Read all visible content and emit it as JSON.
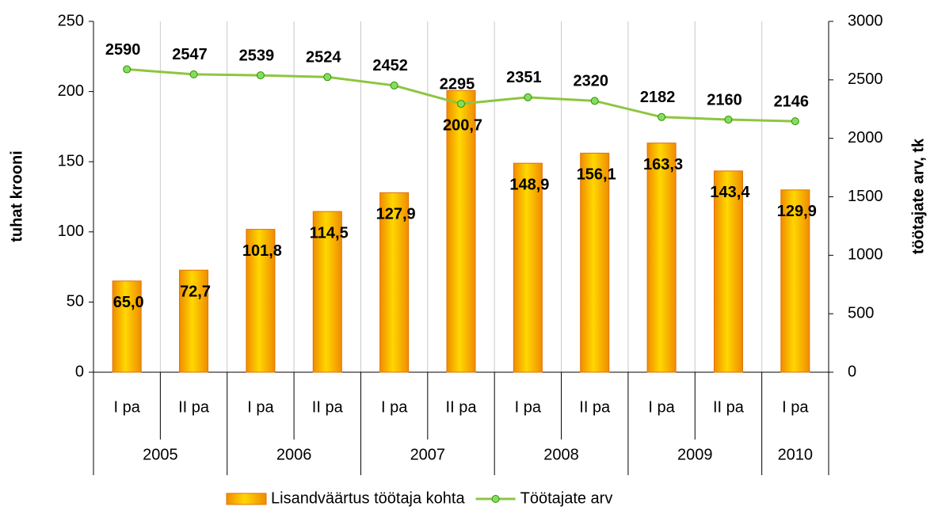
{
  "chart_data": {
    "type": "bar",
    "categories": [
      "I pa",
      "II pa",
      "I pa",
      "II pa",
      "I pa",
      "II pa",
      "I pa",
      "II pa",
      "I pa",
      "II pa",
      "I pa"
    ],
    "category_groups": [
      {
        "name": "2005",
        "size": 2
      },
      {
        "name": "2006",
        "size": 2
      },
      {
        "name": "2007",
        "size": 2
      },
      {
        "name": "2008",
        "size": 2
      },
      {
        "name": "2009",
        "size": 2
      },
      {
        "name": "2010",
        "size": 1
      }
    ],
    "series": [
      {
        "name": "Lisandväärtus töötaja kohta",
        "type": "bar",
        "color": "#f5b800",
        "values": [
          65.0,
          72.7,
          101.8,
          114.5,
          127.9,
          200.7,
          148.9,
          156.1,
          163.3,
          143.4,
          129.9
        ],
        "value_labels": [
          "65,0",
          "72,7",
          "101,8",
          "114,5",
          "127,9",
          "200,7",
          "148,9",
          "156,1",
          "163,3",
          "143,4",
          "129,9"
        ]
      },
      {
        "name": "Töötajate arv",
        "type": "line",
        "axis": "y2",
        "color": "#8dc63f",
        "values": [
          2590,
          2547,
          2539,
          2524,
          2452,
          2295,
          2351,
          2320,
          2182,
          2160,
          2146
        ]
      }
    ],
    "y_label": "tuhat krooni",
    "y2_label": "töötajate arv, tk",
    "ylim": [
      0,
      250
    ],
    "yticks": [
      0,
      50,
      100,
      150,
      200,
      250
    ],
    "y2lim": [
      0,
      3000
    ],
    "y2ticks": [
      0,
      500,
      1000,
      1500,
      2000,
      2500,
      3000
    ],
    "legend": "bottom"
  }
}
